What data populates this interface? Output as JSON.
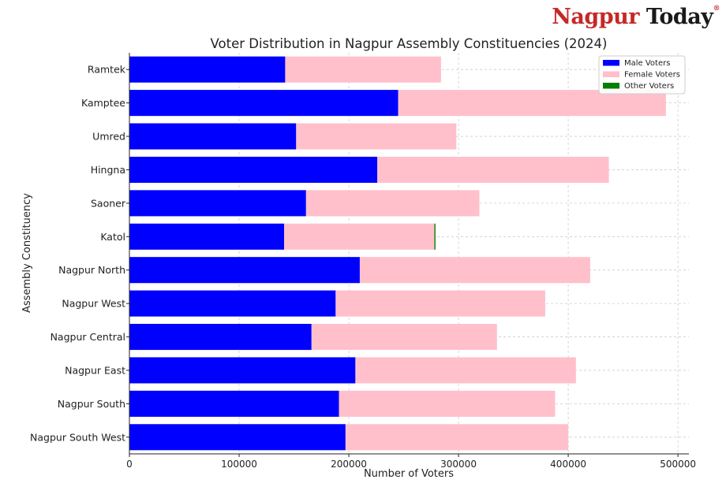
{
  "logo": {
    "word1": "Nagpur",
    "word2": "Today",
    "mark": "®"
  },
  "chart_data": {
    "type": "bar",
    "orientation": "horizontal",
    "stacked": true,
    "title": "Voter Distribution in Nagpur Assembly Constituencies (2024)",
    "xlabel": "Number of Voters",
    "ylabel": "Assembly Constituency",
    "xlim": [
      0,
      510000
    ],
    "xticks": [
      0,
      100000,
      200000,
      300000,
      400000,
      500000
    ],
    "grid": true,
    "legend_position": "top-right",
    "categories": [
      "Ramtek",
      "Kamptee",
      "Umred",
      "Hingna",
      "Saoner",
      "Katol",
      "Nagpur North",
      "Nagpur West",
      "Nagpur Central",
      "Nagpur East",
      "Nagpur South",
      "Nagpur South West"
    ],
    "series": [
      {
        "name": "Male Voters",
        "color": "#0000ff",
        "values": [
          142000,
          245000,
          152000,
          226000,
          161000,
          141000,
          210000,
          188000,
          166000,
          206000,
          191000,
          197000
        ]
      },
      {
        "name": "Female Voters",
        "color": "#ffc0cb",
        "values": [
          142000,
          244000,
          146000,
          211000,
          158000,
          137000,
          210000,
          191000,
          169000,
          201000,
          197000,
          203000
        ]
      },
      {
        "name": "Other Voters",
        "color": "#008000",
        "values": [
          10,
          12,
          5,
          10,
          5,
          1000,
          12,
          10,
          10,
          5,
          5,
          5
        ]
      }
    ]
  }
}
